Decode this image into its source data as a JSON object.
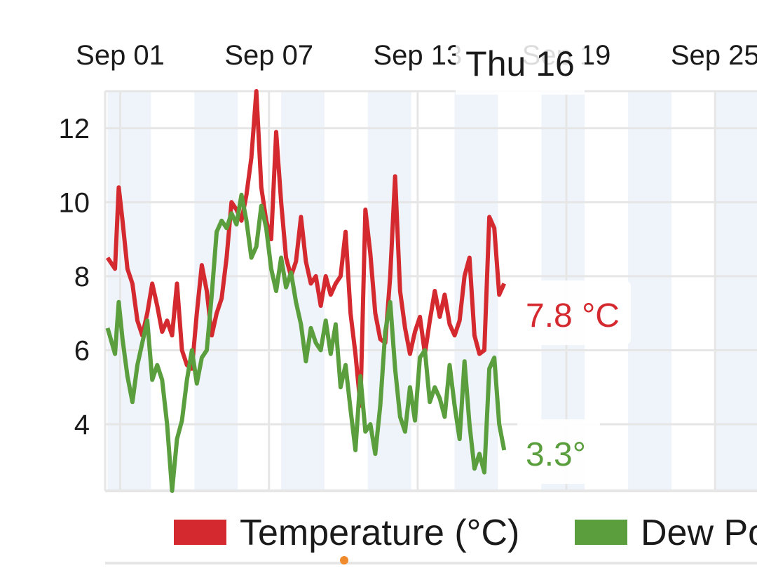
{
  "colors": {
    "temperature": "#d42a2f",
    "dew_point": "#5a9e3e",
    "band": "#eef4fa",
    "grid": "#e6e6e6",
    "dot": "#f08a2c"
  },
  "chart_data": {
    "type": "line",
    "x_tick_labels": [
      "Sep 01",
      "Sep 07",
      "Sep 13",
      "Sep 19",
      "Sep 25"
    ],
    "x_tick_days": [
      1,
      7,
      13,
      19,
      25
    ],
    "xlim": [
      0.9,
      27.2
    ],
    "ylim": [
      2.2,
      13
    ],
    "y_ticks": [
      4,
      6,
      8,
      10,
      12
    ],
    "cursor_label": "Thu 16",
    "series": [
      {
        "name": "Temperature (°C)",
        "key": "temperature",
        "last_label": "7.8 °C",
        "x": [
          1.0,
          1.3,
          1.45,
          1.6,
          1.8,
          2.0,
          2.2,
          2.4,
          2.6,
          2.8,
          3.0,
          3.2,
          3.4,
          3.6,
          3.8,
          4.0,
          4.2,
          4.4,
          4.6,
          4.8,
          5.0,
          5.2,
          5.4,
          5.6,
          5.8,
          6.0,
          6.2,
          6.4,
          6.6,
          6.8,
          7.0,
          7.2,
          7.4,
          7.6,
          7.8,
          8.0,
          8.2,
          8.4,
          8.6,
          8.8,
          9.0,
          9.2,
          9.4,
          9.6,
          9.8,
          10.0,
          10.2,
          10.4,
          10.6,
          10.8,
          11.0,
          11.2,
          11.4,
          11.6,
          11.8,
          12.0,
          12.2,
          12.4,
          12.6,
          12.8,
          13.0,
          13.2,
          13.4,
          13.6,
          13.8,
          14.0,
          14.2,
          14.4,
          14.6,
          14.8,
          15.0,
          15.2,
          15.4,
          15.6,
          15.8,
          16.0,
          16.2,
          16.4,
          16.6,
          16.8,
          17.0
        ],
        "values": [
          8.5,
          8.2,
          10.4,
          9.5,
          8.2,
          7.8,
          6.8,
          6.4,
          7.0,
          7.8,
          7.2,
          6.5,
          6.8,
          6.4,
          7.8,
          6.0,
          5.6,
          5.5,
          7.0,
          8.3,
          7.6,
          6.4,
          7.0,
          7.4,
          8.5,
          10.0,
          9.8,
          9.5,
          10.2,
          11.2,
          13.0,
          10.4,
          9.5,
          9.0,
          11.9,
          10.0,
          8.5,
          8.0,
          8.4,
          9.6,
          8.4,
          7.8,
          8.0,
          7.2,
          8.0,
          7.5,
          7.8,
          8.0,
          9.2,
          7.0,
          5.9,
          4.5,
          9.8,
          8.6,
          7.0,
          6.3,
          6.2,
          8.0,
          10.7,
          7.6,
          6.6,
          5.9,
          6.5,
          6.9,
          5.9,
          6.8,
          7.6,
          6.9,
          7.5,
          6.7,
          6.4,
          6.8,
          8.0,
          8.5,
          6.4,
          5.9,
          6.0,
          9.6,
          9.3,
          7.5,
          7.8
        ]
      },
      {
        "name": "Dew Point",
        "key": "dew_point",
        "last_label": "3.3°",
        "x": [
          1.0,
          1.3,
          1.45,
          1.6,
          1.8,
          2.0,
          2.2,
          2.4,
          2.6,
          2.8,
          3.0,
          3.2,
          3.4,
          3.6,
          3.8,
          4.0,
          4.2,
          4.4,
          4.6,
          4.8,
          5.0,
          5.2,
          5.4,
          5.6,
          5.8,
          6.0,
          6.2,
          6.4,
          6.6,
          6.8,
          7.0,
          7.2,
          7.4,
          7.6,
          7.8,
          8.0,
          8.2,
          8.4,
          8.6,
          8.8,
          9.0,
          9.2,
          9.4,
          9.6,
          9.8,
          10.0,
          10.2,
          10.4,
          10.6,
          10.8,
          11.0,
          11.2,
          11.4,
          11.6,
          11.8,
          12.0,
          12.2,
          12.4,
          12.6,
          12.8,
          13.0,
          13.2,
          13.4,
          13.6,
          13.8,
          14.0,
          14.2,
          14.4,
          14.6,
          14.8,
          15.0,
          15.2,
          15.4,
          15.6,
          15.8,
          16.0,
          16.2,
          16.4,
          16.6,
          16.8,
          17.0
        ],
        "values": [
          6.6,
          5.9,
          7.3,
          6.3,
          5.3,
          4.6,
          5.6,
          6.2,
          6.8,
          5.2,
          5.6,
          5.2,
          4.0,
          2.2,
          3.6,
          4.1,
          5.2,
          6.0,
          5.1,
          5.8,
          6.0,
          7.5,
          9.2,
          9.5,
          9.3,
          9.7,
          9.4,
          10.2,
          9.5,
          8.5,
          8.8,
          9.9,
          9.3,
          8.2,
          7.6,
          8.5,
          7.7,
          8.1,
          7.3,
          6.7,
          5.7,
          6.6,
          6.2,
          6.0,
          6.8,
          5.9,
          6.7,
          5.0,
          5.6,
          4.4,
          3.3,
          5.3,
          3.8,
          4.0,
          3.2,
          4.5,
          6.5,
          7.3,
          5.5,
          4.2,
          3.8,
          5.0,
          4.1,
          5.8,
          6.0,
          4.6,
          5.0,
          4.7,
          4.2,
          5.6,
          4.5,
          3.6,
          5.7,
          4.0,
          2.8,
          3.2,
          2.7,
          5.5,
          5.8,
          4.0,
          3.3
        ]
      }
    ],
    "legend": [
      "Temperature (°C)",
      "Dew Point"
    ],
    "legend_placement": "bottom",
    "grid": true
  }
}
